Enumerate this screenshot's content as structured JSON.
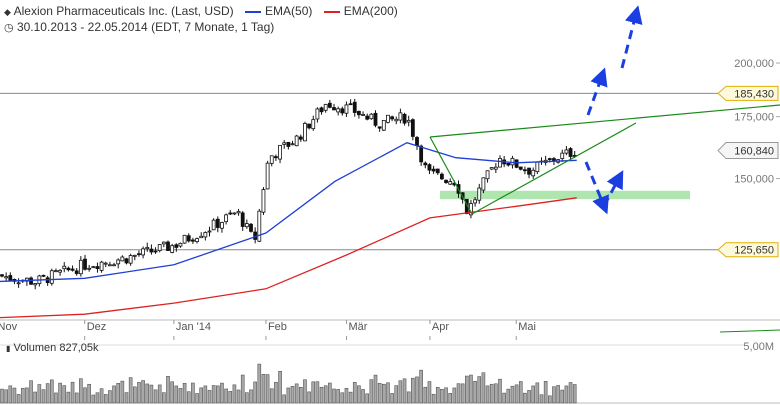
{
  "header": {
    "title": "Alexion Pharmaceuticals Inc. (Last, USD)",
    "legend": [
      {
        "label": "EMA(50)",
        "color": "#1f3fd6"
      },
      {
        "label": "EMA(200)",
        "color": "#dd2222"
      }
    ],
    "subtitle": "30.10.2013 - 22.05.2014 (EDT, 7 Monate, 1 Tag)"
  },
  "volume": {
    "label": "Volumen",
    "value": "827,05k",
    "axis_label": "5,00M"
  },
  "chart_data": {
    "type": "candlestick",
    "title": "Alexion Pharmaceuticals Inc. (Last, USD)",
    "subtitle": "30.10.2013 - 22.05.2014 (EDT, 7 Monate, 1 Tag)",
    "y_scale": "log",
    "ylim": [
      106,
      215
    ],
    "y_ticks": [
      150000,
      175000,
      200000
    ],
    "y_tick_labels": [
      "150,000",
      "175,000",
      "200,000"
    ],
    "x_months": [
      "Nov",
      "Dez",
      "Jan '14",
      "Feb",
      "Mär",
      "Apr",
      "Mai"
    ],
    "price_close_approx": [
      {
        "date": "2013-11-01",
        "close": 118
      },
      {
        "date": "2013-11-15",
        "close": 116
      },
      {
        "date": "2013-12-02",
        "close": 121
      },
      {
        "date": "2013-12-16",
        "close": 123
      },
      {
        "date": "2014-01-02",
        "close": 127
      },
      {
        "date": "2014-01-15",
        "close": 133
      },
      {
        "date": "2014-01-24",
        "close": 138
      },
      {
        "date": "2014-01-30",
        "close": 128
      },
      {
        "date": "2014-02-04",
        "close": 158
      },
      {
        "date": "2014-02-14",
        "close": 166
      },
      {
        "date": "2014-02-24",
        "close": 181
      },
      {
        "date": "2014-03-05",
        "close": 178
      },
      {
        "date": "2014-03-14",
        "close": 172
      },
      {
        "date": "2014-03-24",
        "close": 175
      },
      {
        "date": "2014-03-31",
        "close": 152
      },
      {
        "date": "2014-04-10",
        "close": 149
      },
      {
        "date": "2014-04-14",
        "close": 138
      },
      {
        "date": "2014-04-25",
        "close": 158
      },
      {
        "date": "2014-05-06",
        "close": 153
      },
      {
        "date": "2014-05-15",
        "close": 158
      },
      {
        "date": "2014-05-22",
        "close": 160.84
      }
    ],
    "series": [
      {
        "name": "EMA(50)",
        "color": "#1f3fd6",
        "values": [
          {
            "date": "2013-10-30",
            "value": 116
          },
          {
            "date": "2013-12-02",
            "value": 117
          },
          {
            "date": "2014-01-02",
            "value": 121
          },
          {
            "date": "2014-02-03",
            "value": 131
          },
          {
            "date": "2014-02-27",
            "value": 149
          },
          {
            "date": "2014-03-24",
            "value": 164
          },
          {
            "date": "2014-04-10",
            "value": 158
          },
          {
            "date": "2014-05-01",
            "value": 156
          },
          {
            "date": "2014-05-22",
            "value": 157
          }
        ]
      },
      {
        "name": "EMA(200)",
        "color": "#dd2222",
        "values": [
          {
            "date": "2013-10-30",
            "value": 106
          },
          {
            "date": "2013-12-02",
            "value": 107
          },
          {
            "date": "2014-01-02",
            "value": 110
          },
          {
            "date": "2014-02-03",
            "value": 114
          },
          {
            "date": "2014-03-03",
            "value": 124
          },
          {
            "date": "2014-04-01",
            "value": 136
          },
          {
            "date": "2014-05-01",
            "value": 140
          },
          {
            "date": "2014-05-22",
            "value": 143
          }
        ]
      }
    ],
    "annotations": {
      "horizontal_levels": [
        {
          "label": "185,430",
          "value": 185.43
        },
        {
          "label": "125,650",
          "value": 125.65
        }
      ],
      "last_price": {
        "label": "160,840",
        "value": 160.84
      },
      "support_zone": {
        "from": 142.5,
        "to": 145.5,
        "color": "#9be09b"
      }
    },
    "grid": false
  }
}
